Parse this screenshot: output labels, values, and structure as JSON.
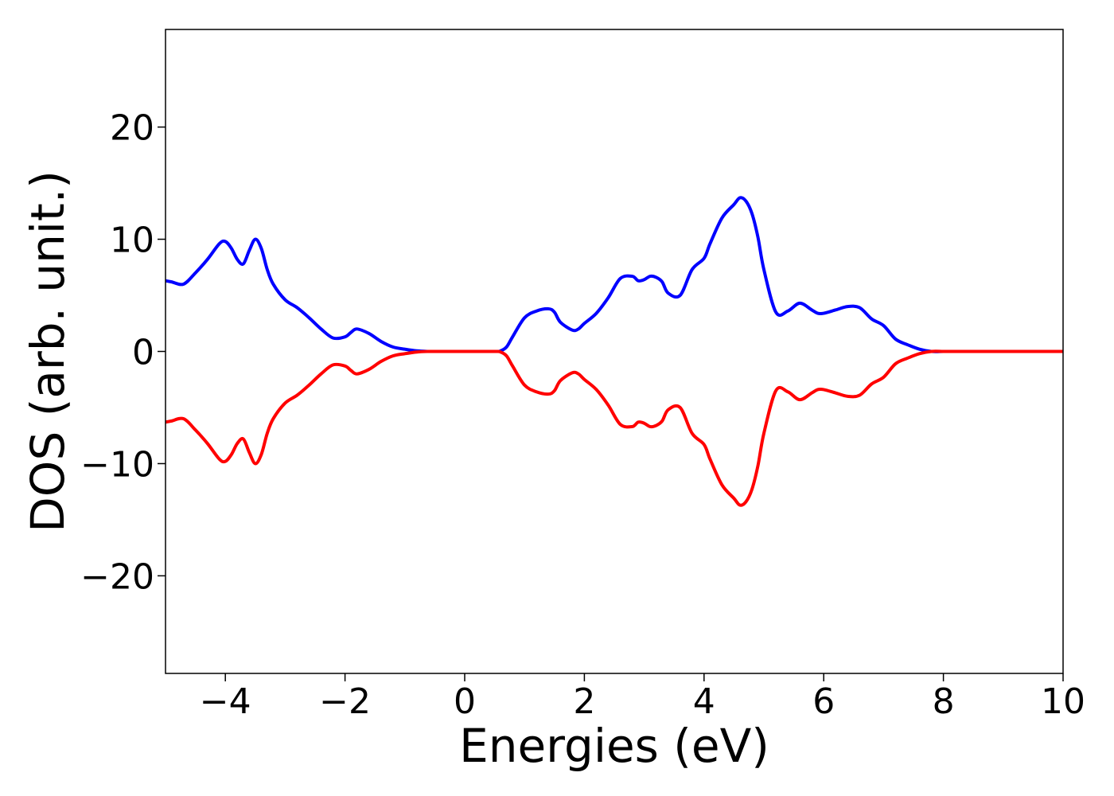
{
  "chart_data": {
    "type": "line",
    "title": "",
    "xlabel": "Energies (eV)",
    "ylabel": "DOS (arb. unit.)",
    "xlim": [
      -5,
      10
    ],
    "ylim": [
      -28.7,
      28.7
    ],
    "x_ticks": [
      -4,
      -2,
      0,
      2,
      4,
      6,
      8,
      10
    ],
    "x_tick_labels": [
      "−4",
      "−2",
      "0",
      "2",
      "4",
      "6",
      "8",
      "10"
    ],
    "y_ticks": [
      -20,
      -10,
      0,
      10,
      20
    ],
    "y_tick_labels": [
      "−20",
      "−10",
      "0",
      "10",
      "20"
    ],
    "grid": false,
    "legend": "none",
    "x": [
      -5.0,
      -4.9,
      -4.7,
      -4.5,
      -4.3,
      -4.1,
      -4.0,
      -3.9,
      -3.8,
      -3.7,
      -3.6,
      -3.5,
      -3.4,
      -3.3,
      -3.2,
      -3.0,
      -2.8,
      -2.6,
      -2.4,
      -2.2,
      -2.0,
      -1.9,
      -1.8,
      -1.6,
      -1.4,
      -1.2,
      -1.0,
      -0.8,
      -0.6,
      -0.5,
      0.0,
      0.5,
      0.6,
      0.7,
      0.8,
      1.0,
      1.2,
      1.4,
      1.5,
      1.6,
      1.8,
      1.9,
      2.0,
      2.2,
      2.4,
      2.6,
      2.8,
      2.9,
      3.0,
      3.1,
      3.2,
      3.3,
      3.4,
      3.6,
      3.8,
      4.0,
      4.1,
      4.3,
      4.5,
      4.6,
      4.7,
      4.8,
      4.9,
      5.0,
      5.2,
      5.4,
      5.6,
      5.8,
      5.9,
      6.0,
      6.2,
      6.4,
      6.6,
      6.8,
      7.0,
      7.2,
      7.4,
      7.6,
      7.8,
      8.0,
      8.2,
      9.0,
      10.0
    ],
    "series": [
      {
        "color": "#0000ff",
        "values": [
          6.3,
          6.2,
          6.0,
          7.0,
          8.2,
          9.6,
          9.8,
          9.2,
          8.2,
          7.8,
          9.0,
          10.0,
          9.2,
          7.3,
          6.0,
          4.6,
          3.9,
          3.0,
          2.0,
          1.2,
          1.3,
          1.7,
          2.0,
          1.6,
          0.9,
          0.4,
          0.2,
          0.05,
          0.0,
          0.0,
          0.0,
          0.0,
          0.05,
          0.4,
          1.3,
          3.0,
          3.6,
          3.8,
          3.5,
          2.6,
          1.9,
          2.0,
          2.5,
          3.4,
          4.8,
          6.5,
          6.7,
          6.3,
          6.4,
          6.7,
          6.6,
          6.2,
          5.2,
          5.0,
          7.3,
          8.3,
          9.6,
          11.9,
          13.1,
          13.7,
          13.4,
          12.3,
          10.2,
          7.3,
          3.5,
          3.6,
          4.3,
          3.7,
          3.4,
          3.4,
          3.7,
          4.0,
          3.9,
          2.9,
          2.3,
          1.1,
          0.6,
          0.2,
          0.0,
          0.0,
          0.0,
          0.0,
          0.0
        ]
      },
      {
        "color": "#ff0000",
        "values": [
          -6.3,
          -6.2,
          -6.0,
          -7.0,
          -8.2,
          -9.6,
          -9.8,
          -9.2,
          -8.2,
          -7.8,
          -9.0,
          -10.0,
          -9.2,
          -7.3,
          -6.0,
          -4.6,
          -3.9,
          -3.0,
          -2.0,
          -1.2,
          -1.3,
          -1.7,
          -2.0,
          -1.6,
          -0.9,
          -0.4,
          -0.2,
          -0.05,
          0.0,
          0.0,
          0.0,
          0.0,
          -0.05,
          -0.4,
          -1.3,
          -3.0,
          -3.6,
          -3.8,
          -3.5,
          -2.6,
          -1.9,
          -2.0,
          -2.5,
          -3.4,
          -4.8,
          -6.5,
          -6.7,
          -6.3,
          -6.4,
          -6.7,
          -6.6,
          -6.2,
          -5.2,
          -5.0,
          -7.3,
          -8.3,
          -9.6,
          -11.9,
          -13.1,
          -13.7,
          -13.4,
          -12.3,
          -10.2,
          -7.3,
          -3.5,
          -3.6,
          -4.3,
          -3.7,
          -3.4,
          -3.4,
          -3.7,
          -4.0,
          -3.9,
          -2.9,
          -2.3,
          -1.1,
          -0.6,
          -0.2,
          0.0,
          0.0,
          0.0,
          0.0,
          0.0
        ]
      }
    ]
  }
}
